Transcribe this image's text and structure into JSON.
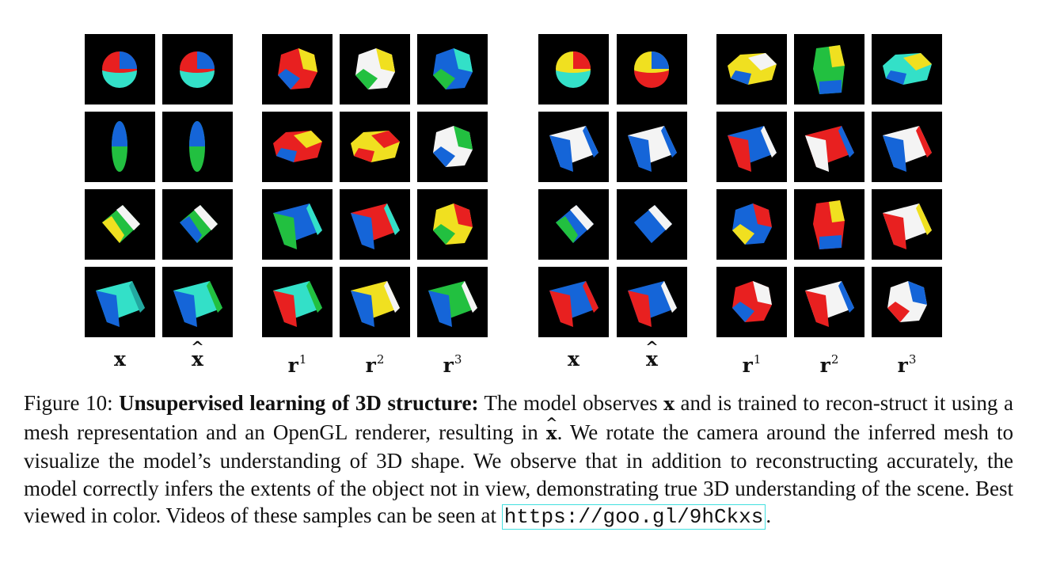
{
  "figure": {
    "groups": [
      {
        "column_labels": [
          {
            "base": "x",
            "hat": "",
            "sup": ""
          },
          {
            "base": "x",
            "hat": "^",
            "sup": ""
          },
          {
            "base": "r",
            "hat": "",
            "sup": "1"
          },
          {
            "base": "r",
            "hat": "",
            "sup": "2"
          },
          {
            "base": "r",
            "hat": "",
            "sup": "3"
          }
        ],
        "rows": [
          [
            {
              "shape": "sphere",
              "colors": [
                "#e82020",
                "#1565d8",
                "#33e0c8"
              ]
            },
            {
              "shape": "sphere",
              "colors": [
                "#e82020",
                "#1565d8",
                "#33e0c8"
              ]
            },
            {
              "shape": "blob",
              "colors": [
                "#e82020",
                "#f0e020",
                "#1565d8"
              ]
            },
            {
              "shape": "blob",
              "colors": [
                "#f4f4f4",
                "#f0e020",
                "#22c040"
              ]
            },
            {
              "shape": "blob",
              "colors": [
                "#1565d8",
                "#33e0c8",
                "#22c040"
              ]
            }
          ],
          [
            {
              "shape": "ellipse",
              "colors": [
                "#1565d8",
                "#22c040"
              ]
            },
            {
              "shape": "ellipse",
              "colors": [
                "#1565d8",
                "#22c040"
              ]
            },
            {
              "shape": "wide",
              "colors": [
                "#e82020",
                "#f0e020",
                "#1565d8"
              ]
            },
            {
              "shape": "wide",
              "colors": [
                "#f0e020",
                "#e82020"
              ]
            },
            {
              "shape": "blob",
              "colors": [
                "#f4f4f4",
                "#22c040",
                "#1565d8"
              ]
            }
          ],
          [
            {
              "shape": "cylinder",
              "colors": [
                "#f4f4f4",
                "#22c040",
                "#f0e020"
              ]
            },
            {
              "shape": "cylinder",
              "colors": [
                "#f4f4f4",
                "#22c040",
                "#1565d8"
              ]
            },
            {
              "shape": "cube",
              "colors": [
                "#1565d8",
                "#22c040",
                "#33e0c8"
              ]
            },
            {
              "shape": "cube",
              "colors": [
                "#e82020",
                "#1565d8",
                "#33e0c8"
              ]
            },
            {
              "shape": "blob",
              "colors": [
                "#f0e020",
                "#e82020",
                "#22c040"
              ]
            }
          ],
          [
            {
              "shape": "cube",
              "colors": [
                "#33e0c8",
                "#1565d8",
                "#22a8a0"
              ]
            },
            {
              "shape": "cube",
              "colors": [
                "#33e0c8",
                "#1565d8",
                "#22c040"
              ]
            },
            {
              "shape": "cube",
              "colors": [
                "#33e0c8",
                "#e82020",
                "#22c040"
              ]
            },
            {
              "shape": "cube",
              "colors": [
                "#f0e020",
                "#1565d8",
                "#f4f4f4"
              ]
            },
            {
              "shape": "cube",
              "colors": [
                "#22c040",
                "#1565d8",
                "#f4f4f4"
              ]
            }
          ]
        ]
      },
      {
        "column_labels": [
          {
            "base": "x",
            "hat": "",
            "sup": ""
          },
          {
            "base": "x",
            "hat": "^",
            "sup": ""
          },
          {
            "base": "r",
            "hat": "",
            "sup": "1"
          },
          {
            "base": "r",
            "hat": "",
            "sup": "2"
          },
          {
            "base": "r",
            "hat": "",
            "sup": "3"
          }
        ],
        "rows": [
          [
            {
              "shape": "sphere",
              "colors": [
                "#f0e020",
                "#e82020",
                "#33e0c8"
              ]
            },
            {
              "shape": "sphere",
              "colors": [
                "#f0e020",
                "#1565d8",
                "#e82020"
              ]
            },
            {
              "shape": "wide",
              "colors": [
                "#f0e020",
                "#f4f4f4",
                "#1565d8"
              ]
            },
            {
              "shape": "tall",
              "colors": [
                "#22c040",
                "#f0e020",
                "#1565d8"
              ]
            },
            {
              "shape": "wide",
              "colors": [
                "#33e0c8",
                "#f0e020",
                "#1565d8"
              ]
            }
          ],
          [
            {
              "shape": "cube",
              "colors": [
                "#f4f4f4",
                "#1565d8",
                "#1565d8"
              ]
            },
            {
              "shape": "cube",
              "colors": [
                "#f4f4f4",
                "#1565d8",
                "#1565d8"
              ]
            },
            {
              "shape": "cube",
              "colors": [
                "#1565d8",
                "#e82020",
                "#f4f4f4"
              ]
            },
            {
              "shape": "cube",
              "colors": [
                "#e82020",
                "#f4f4f4",
                "#1565d8"
              ]
            },
            {
              "shape": "cube",
              "colors": [
                "#f4f4f4",
                "#1565d8",
                "#e82020"
              ]
            }
          ],
          [
            {
              "shape": "cylinder",
              "colors": [
                "#f4f4f4",
                "#1565d8",
                "#22c040"
              ]
            },
            {
              "shape": "cylinder",
              "colors": [
                "#f4f4f4",
                "#1565d8",
                "#1565d8"
              ]
            },
            {
              "shape": "blob",
              "colors": [
                "#1565d8",
                "#e82020",
                "#f0e020"
              ]
            },
            {
              "shape": "tall",
              "colors": [
                "#e82020",
                "#f0e020",
                "#1565d8"
              ]
            },
            {
              "shape": "cube",
              "colors": [
                "#f4f4f4",
                "#e82020",
                "#f0e020"
              ]
            }
          ],
          [
            {
              "shape": "cube",
              "colors": [
                "#1565d8",
                "#e82020",
                "#e82020"
              ]
            },
            {
              "shape": "cube",
              "colors": [
                "#1565d8",
                "#e82020",
                "#f4f4f4"
              ]
            },
            {
              "shape": "blob",
              "colors": [
                "#e82020",
                "#f4f4f4",
                "#1565d8"
              ]
            },
            {
              "shape": "cube",
              "colors": [
                "#f4f4f4",
                "#e82020",
                "#1565d8"
              ]
            },
            {
              "shape": "blob",
              "colors": [
                "#f4f4f4",
                "#1565d8",
                "#e82020"
              ]
            }
          ]
        ]
      }
    ]
  },
  "caption": {
    "prefix": "Figure 10: ",
    "lead": "Unsupervised learning of 3D structure:",
    "t1": " The model observes ",
    "x": "x",
    "t2": " and is trained to recon-struct it using a mesh representation and an OpenGL renderer, resulting in ",
    "xhat": "x",
    "t3": ". We rotate the camera around the inferred mesh to visualize the model’s understanding of 3D shape. We observe that in addition to reconstructing accurately, the model correctly infers the extents of the object not in view, demonstrating true 3D understanding of the scene. Best viewed in color. Videos of these samples can be seen at ",
    "link": "https://goo.gl/9hCkxs",
    "t4": "."
  }
}
